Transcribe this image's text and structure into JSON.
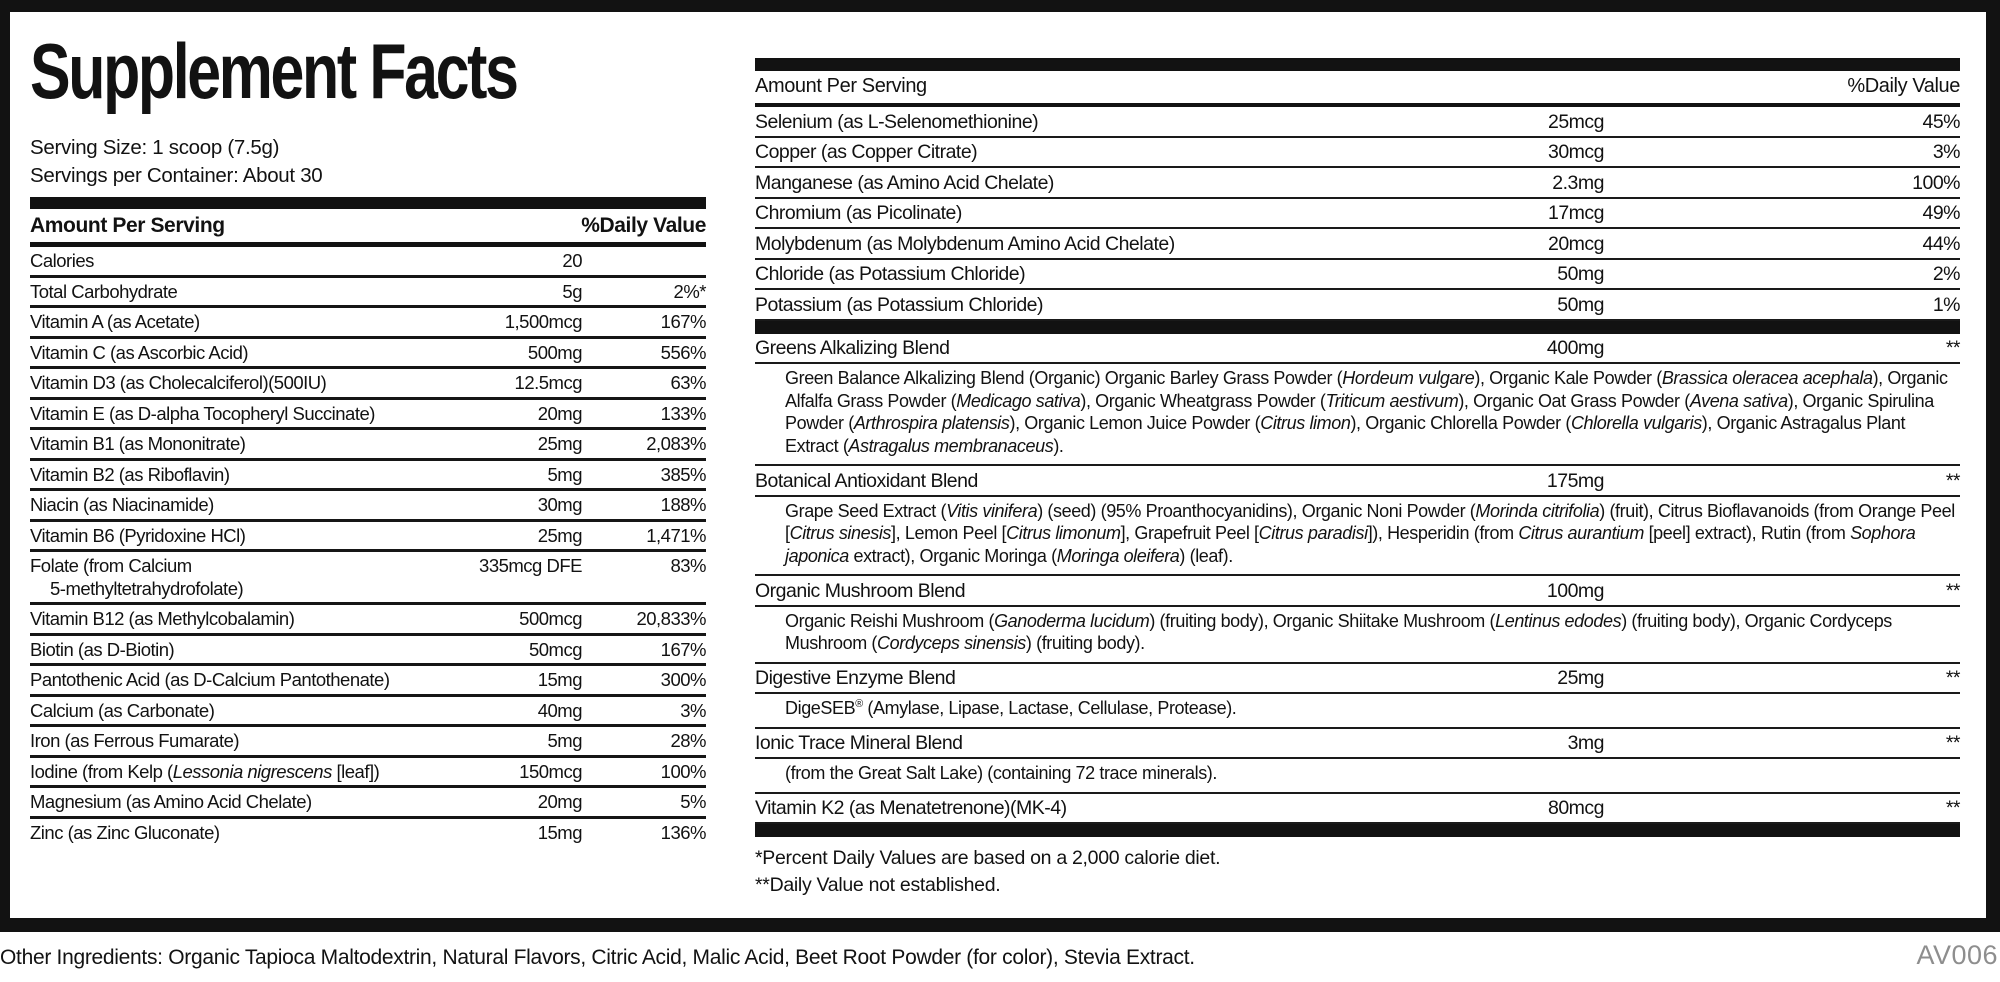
{
  "label": {
    "title": "Supplement Facts",
    "serving_size": "Serving Size: 1 scoop (7.5g)",
    "servings_per_container": "Servings per Container: About 30"
  },
  "left_table": {
    "header": {
      "amount": "Amount Per Serving",
      "dv": "%Daily Value"
    },
    "rows": [
      {
        "name": "Calories",
        "amount": "20",
        "dv": ""
      },
      {
        "name": "Total Carbohydrate",
        "amount": "5g",
        "dv": "2%*"
      },
      {
        "name": "Vitamin A (as Acetate)",
        "amount": "1,500mcg",
        "dv": "167%"
      },
      {
        "name": "Vitamin C (as Ascorbic Acid)",
        "amount": "500mg",
        "dv": "556%"
      },
      {
        "name": "Vitamin D3 (as Cholecalciferol)(500IU)",
        "amount": "12.5mcg",
        "dv": "63%"
      },
      {
        "name": "Vitamin E (as D-alpha Tocopheryl Succinate)",
        "amount": "20mg",
        "dv": "133%"
      },
      {
        "name": "Vitamin B1 (as Mononitrate)",
        "amount": "25mg",
        "dv": "2,083%"
      },
      {
        "name": "Vitamin B2 (as Riboflavin)",
        "amount": "5mg",
        "dv": "385%"
      },
      {
        "name": "Niacin (as Niacinamide)",
        "amount": "30mg",
        "dv": "188%"
      },
      {
        "name": "Vitamin B6 (Pyridoxine HCl)",
        "amount": "25mg",
        "dv": "1,471%"
      },
      {
        "name": "Folate (from Calcium{br}5-methyltetrahydrofolate)",
        "amount": "335mcg DFE",
        "dv": "83%"
      },
      {
        "name": "Vitamin B12 (as Methylcobalamin)",
        "amount": "500mcg",
        "dv": "20,833%"
      },
      {
        "name": "Biotin (as D-Biotin)",
        "amount": "50mcg",
        "dv": "167%"
      },
      {
        "name": "Pantothenic Acid (as D-Calcium Pantothenate)",
        "amount": "15mg",
        "dv": "300%"
      },
      {
        "name": "Calcium (as Carbonate)",
        "amount": "40mg",
        "dv": "3%"
      },
      {
        "name": "Iron (as Ferrous Fumarate)",
        "amount": "5mg",
        "dv": "28%"
      },
      {
        "name": "Iodine (from Kelp ({i}Lessonia nigrescens{/i} [leaf])",
        "amount": "150mcg",
        "dv": "100%"
      },
      {
        "name": "Magnesium (as Amino Acid Chelate)",
        "amount": "20mg",
        "dv": "5%"
      },
      {
        "name": "Zinc (as Zinc Gluconate)",
        "amount": "15mg",
        "dv": "136%"
      }
    ]
  },
  "right_table": {
    "header": {
      "amount": "Amount Per Serving",
      "dv": "%Daily Value"
    },
    "rows": [
      {
        "name": "Selenium (as L-Selenomethionine)",
        "amount": "25mcg",
        "dv": "45%"
      },
      {
        "name": "Copper (as Copper Citrate)",
        "amount": "30mcg",
        "dv": "3%"
      },
      {
        "name": "Manganese (as Amino Acid Chelate)",
        "amount": "2.3mg",
        "dv": "100%"
      },
      {
        "name": "Chromium (as Picolinate)",
        "amount": "17mcg",
        "dv": "49%"
      },
      {
        "name": "Molybdenum (as Molybdenum Amino Acid Chelate)",
        "amount": "20mcg",
        "dv": "44%"
      },
      {
        "name": "Chloride (as Potassium Chloride)",
        "amount": "50mg",
        "dv": "2%"
      },
      {
        "name": "Potassium (as Potassium Chloride)",
        "amount": "50mg",
        "dv": "1%"
      }
    ],
    "blends": [
      {
        "name": "Greens Alkalizing Blend",
        "amount": "400mg",
        "dv": "**",
        "desc": "Green Balance Alkalizing Blend (Organic) Organic Barley Grass Powder ({i}Hordeum vulgare{/i}), Organic Kale Powder ({i}Brassica oleracea acephala{/i}), Organic Alfalfa Grass Powder ({i}Medicago sativa{/i}), Organic Wheatgrass Powder ({i}Triticum aestivum{/i}), Organic Oat Grass Powder ({i}Avena sativa{/i}), Organic Spirulina Powder ({i}Arthrospira platensis{/i}), Organic Lemon Juice Powder ({i}Citrus limon{/i}), Organic Chlorella Powder ({i}Chlorella vulgaris{/i}), Organic Astragalus Plant Extract ({i}Astragalus membranaceus{/i})."
      },
      {
        "name": "Botanical Antioxidant Blend",
        "amount": "175mg",
        "dv": "**",
        "desc": "Grape Seed Extract ({i}Vitis vinifera{/i}) (seed) (95% Proanthocyanidins), Organic Noni Powder ({i}Morinda citrifolia{/i}) (fruit), Citrus Bioflavanoids (from Orange Peel [{i}Citrus sinesis{/i}], Lemon Peel [{i}Citrus limonum{/i}], Grapefruit Peel [{i}Citrus paradisi{/i}]), Hesperidin (from {i}Citrus aurantium{/i} [peel] extract), Rutin (from {i}Sophora japonica{/i} extract), Organic Moringa ({i}Moringa oleifera{/i}) (leaf)."
      },
      {
        "name": "Organic Mushroom Blend",
        "amount": "100mg",
        "dv": "**",
        "desc": "Organic Reishi Mushroom ({i}Ganoderma lucidum{/i}) (fruiting body), Organic Shiitake Mushroom ({i}Lentinus edodes{/i}) (fruiting body), Organic Cordyceps Mushroom ({i}Cordyceps sinensis{/i}) (fruiting body)."
      },
      {
        "name": "Digestive Enzyme Blend",
        "amount": "25mg",
        "dv": "**",
        "desc": "DigeSEB{sup}®{/sup} (Amylase, Lipase, Lactase, Cellulase, Protease)."
      },
      {
        "name": "Ionic Trace Mineral Blend",
        "amount": "3mg",
        "dv": "**",
        "desc": "(from the Great Salt Lake) (containing 72 trace minerals)."
      },
      {
        "name": "Vitamin K2 (as Menatetrenone)(MK-4)",
        "amount": "80mcg",
        "dv": "**",
        "desc": ""
      }
    ],
    "footnotes": [
      "*Percent Daily Values are based on a 2,000 calorie diet.",
      "**Daily Value not established."
    ]
  },
  "footer": {
    "other_ingredients": "Other Ingredients: Organic Tapioca Maltodextrin, Natural Flavors, Citric Acid, Malic Acid, Beet Root Powder (for color), Stevia Extract.",
    "code": "AV006"
  }
}
